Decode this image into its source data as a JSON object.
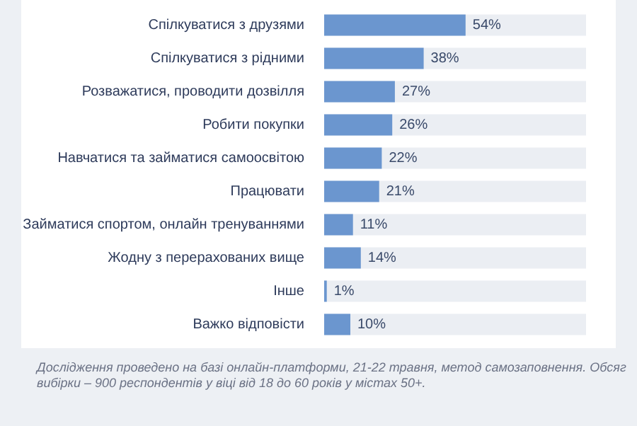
{
  "chart_data": {
    "type": "bar",
    "orientation": "horizontal",
    "color": "#6b96cf",
    "categories": [
      "Спілкуватися з друзями",
      "Спілкуватися з рідними",
      "Розважатися, проводити дозвілля",
      "Робити покупки",
      "Навчатися та займатися самоосвітою",
      "Працювати",
      "Займатися спортом, онлайн тренуваннями",
      "Жодну з перерахованих вище",
      "Інше",
      "Важко відповісти"
    ],
    "values": [
      54,
      38,
      27,
      26,
      22,
      21,
      11,
      14,
      1,
      10
    ],
    "value_labels": [
      "54%",
      "38%",
      "27%",
      "26%",
      "22%",
      "21%",
      "11%",
      "14%",
      "1%",
      "10%"
    ],
    "xlim": [
      0,
      100
    ],
    "tick_labels": "y",
    "annotations": [
      "Дослідження проведено на базі онлайн-платформи, 21-22 травня, метод самозаповнення. Обсяг вибірки – 900 респондентів у віці від 18 до 60 років у містах 50+."
    ]
  }
}
